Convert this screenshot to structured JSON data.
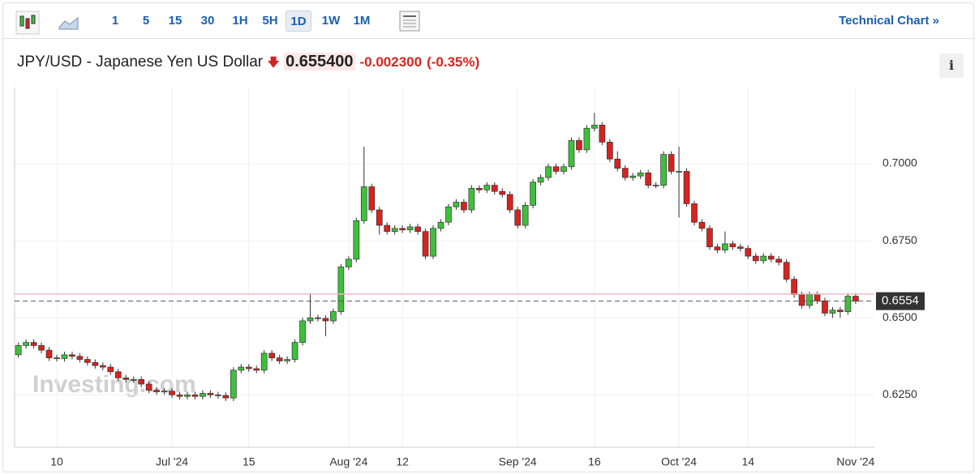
{
  "toolbar": {
    "intervals": [
      "1",
      "5",
      "15",
      "30",
      "1H",
      "5H",
      "1D",
      "1W",
      "1M"
    ],
    "active_interval_index": 6,
    "technical_chart": "Technical Chart »"
  },
  "header": {
    "instrument": "JPY/USD - Japanese Yen US Dollar",
    "price": "0.655400",
    "change": "-0.002300",
    "change_percent": "(-0.35%)",
    "info": "i"
  },
  "chart_data": {
    "type": "candlestick",
    "watermark": "Investing.com",
    "categories": [
      null,
      null,
      null,
      null,
      null,
      "10",
      null,
      null,
      null,
      null,
      null,
      null,
      null,
      null,
      null,
      null,
      null,
      null,
      null,
      null,
      "Jul '24",
      null,
      null,
      null,
      null,
      null,
      null,
      null,
      null,
      null,
      "15",
      null,
      null,
      null,
      null,
      null,
      null,
      null,
      null,
      null,
      null,
      null,
      null,
      "Aug '24",
      null,
      null,
      null,
      null,
      null,
      null,
      "12",
      null,
      null,
      null,
      null,
      null,
      null,
      null,
      null,
      null,
      null,
      null,
      null,
      null,
      null,
      "Sep '24",
      null,
      null,
      null,
      null,
      null,
      null,
      null,
      null,
      null,
      "16",
      null,
      null,
      null,
      null,
      null,
      null,
      null,
      null,
      null,
      null,
      "Oct '24",
      null,
      null,
      null,
      null,
      null,
      null,
      null,
      null,
      "14",
      null,
      null,
      null,
      null,
      null,
      null,
      null,
      null,
      null,
      null,
      null,
      null,
      null,
      "Nov '24"
    ],
    "open": [
      0.638,
      0.641,
      0.642,
      0.641,
      0.6395,
      0.637,
      0.6368,
      0.638,
      0.6375,
      0.6365,
      0.6355,
      0.6345,
      0.634,
      0.6325,
      0.6305,
      0.63,
      0.63,
      0.6285,
      0.6265,
      0.626,
      0.6262,
      0.625,
      0.6245,
      0.625,
      0.6245,
      0.6255,
      0.625,
      0.6248,
      0.624,
      0.633,
      0.634,
      0.6335,
      0.633,
      0.6385,
      0.637,
      0.636,
      0.6365,
      0.642,
      0.649,
      0.65,
      0.6498,
      0.649,
      0.652,
      0.6665,
      0.669,
      0.6815,
      0.6925,
      0.685,
      0.68,
      0.678,
      0.679,
      0.6785,
      0.6795,
      0.678,
      0.67,
      0.679,
      0.681,
      0.686,
      0.6875,
      0.685,
      0.692,
      0.6915,
      0.693,
      0.691,
      0.69,
      0.685,
      0.68,
      0.6865,
      0.694,
      0.6955,
      0.699,
      0.6975,
      0.699,
      0.7075,
      0.7045,
      0.7115,
      0.7125,
      0.707,
      0.7015,
      0.6985,
      0.6955,
      0.696,
      0.697,
      0.693,
      0.693,
      0.703,
      0.6975,
      0.6975,
      0.687,
      0.681,
      0.679,
      0.673,
      0.672,
      0.674,
      0.673,
      0.6725,
      0.67,
      0.6685,
      0.67,
      0.669,
      0.668,
      0.6625,
      0.6575,
      0.654,
      0.6575,
      0.6555,
      0.6515,
      0.6525,
      0.652,
      0.657
    ],
    "high": [
      0.642,
      0.643,
      0.643,
      0.642,
      0.6405,
      0.638,
      0.639,
      0.639,
      0.6385,
      0.6375,
      0.6365,
      0.6355,
      0.635,
      0.6335,
      0.6315,
      0.631,
      0.631,
      0.6295,
      0.6275,
      0.6272,
      0.6272,
      0.626,
      0.626,
      0.626,
      0.6265,
      0.6265,
      0.626,
      0.6258,
      0.634,
      0.635,
      0.635,
      0.6345,
      0.6395,
      0.6395,
      0.638,
      0.6375,
      0.643,
      0.65,
      0.658,
      0.651,
      0.6508,
      0.653,
      0.6675,
      0.67,
      0.6825,
      0.7055,
      0.6935,
      0.686,
      0.681,
      0.68,
      0.68,
      0.6805,
      0.6805,
      0.679,
      0.68,
      0.682,
      0.687,
      0.6885,
      0.6885,
      0.693,
      0.693,
      0.694,
      0.694,
      0.692,
      0.691,
      0.686,
      0.6875,
      0.695,
      0.6965,
      0.7,
      0.7,
      0.7,
      0.7085,
      0.7085,
      0.7125,
      0.7165,
      0.7135,
      0.708,
      0.704,
      0.6995,
      0.697,
      0.698,
      0.698,
      0.694,
      0.704,
      0.704,
      0.7055,
      0.6985,
      0.688,
      0.682,
      0.68,
      0.674,
      0.678,
      0.675,
      0.674,
      0.6735,
      0.671,
      0.671,
      0.671,
      0.67,
      0.669,
      0.6635,
      0.6585,
      0.6585,
      0.6585,
      0.6565,
      0.6535,
      0.6535,
      0.658,
      0.658
    ],
    "low": [
      0.637,
      0.64,
      0.64,
      0.6385,
      0.636,
      0.6358,
      0.6358,
      0.6365,
      0.6355,
      0.6345,
      0.6335,
      0.633,
      0.6315,
      0.6295,
      0.629,
      0.629,
      0.6275,
      0.6255,
      0.625,
      0.625,
      0.624,
      0.6235,
      0.6235,
      0.6235,
      0.6235,
      0.624,
      0.6238,
      0.623,
      0.623,
      0.632,
      0.6325,
      0.632,
      0.632,
      0.636,
      0.635,
      0.635,
      0.6355,
      0.641,
      0.648,
      0.6488,
      0.644,
      0.648,
      0.651,
      0.6655,
      0.668,
      0.6805,
      0.684,
      0.677,
      0.677,
      0.677,
      0.6775,
      0.6775,
      0.677,
      0.669,
      0.669,
      0.678,
      0.68,
      0.685,
      0.684,
      0.684,
      0.6905,
      0.6905,
      0.69,
      0.689,
      0.684,
      0.679,
      0.679,
      0.6855,
      0.693,
      0.6945,
      0.6965,
      0.6965,
      0.698,
      0.7035,
      0.7035,
      0.7105,
      0.706,
      0.7005,
      0.6975,
      0.6945,
      0.6945,
      0.695,
      0.692,
      0.692,
      0.692,
      0.6965,
      0.6825,
      0.686,
      0.68,
      0.678,
      0.672,
      0.671,
      0.671,
      0.672,
      0.6715,
      0.669,
      0.6675,
      0.6675,
      0.668,
      0.667,
      0.6615,
      0.6565,
      0.653,
      0.653,
      0.6545,
      0.6505,
      0.65,
      0.65,
      0.651,
      0.6545
    ],
    "close": [
      0.641,
      0.642,
      0.641,
      0.6395,
      0.637,
      0.6368,
      0.638,
      0.6375,
      0.6365,
      0.6355,
      0.6345,
      0.634,
      0.6325,
      0.6305,
      0.63,
      0.63,
      0.6285,
      0.6265,
      0.626,
      0.6262,
      0.625,
      0.6245,
      0.625,
      0.6245,
      0.6255,
      0.625,
      0.6248,
      0.624,
      0.633,
      0.634,
      0.6335,
      0.633,
      0.6385,
      0.637,
      0.636,
      0.6365,
      0.642,
      0.649,
      0.65,
      0.6498,
      0.649,
      0.652,
      0.6665,
      0.669,
      0.6815,
      0.6925,
      0.685,
      0.68,
      0.678,
      0.679,
      0.6785,
      0.6795,
      0.678,
      0.67,
      0.679,
      0.681,
      0.686,
      0.6875,
      0.685,
      0.692,
      0.6915,
      0.693,
      0.691,
      0.69,
      0.685,
      0.68,
      0.6865,
      0.694,
      0.6955,
      0.699,
      0.6975,
      0.699,
      0.7075,
      0.7045,
      0.7115,
      0.7125,
      0.707,
      0.7015,
      0.6985,
      0.6955,
      0.696,
      0.697,
      0.693,
      0.693,
      0.703,
      0.6975,
      0.6975,
      0.687,
      0.681,
      0.679,
      0.673,
      0.672,
      0.674,
      0.673,
      0.6725,
      0.67,
      0.6685,
      0.67,
      0.669,
      0.668,
      0.6625,
      0.6575,
      0.654,
      0.6575,
      0.6555,
      0.6515,
      0.6525,
      0.652,
      0.657,
      0.6554
    ],
    "up_color": "#3dc13c",
    "down_color": "#d9221f",
    "ylim": [
      0.608,
      0.7247
    ],
    "yticks": [
      {
        "value": 0.625,
        "label": "0.6250"
      },
      {
        "value": 0.65,
        "label": "0.6500"
      },
      {
        "value": 0.675,
        "label": "0.6750"
      },
      {
        "value": 0.7,
        "label": "0.7000"
      }
    ],
    "grid": true,
    "last_price": 0.6554,
    "reference_line": 0.6577
  }
}
